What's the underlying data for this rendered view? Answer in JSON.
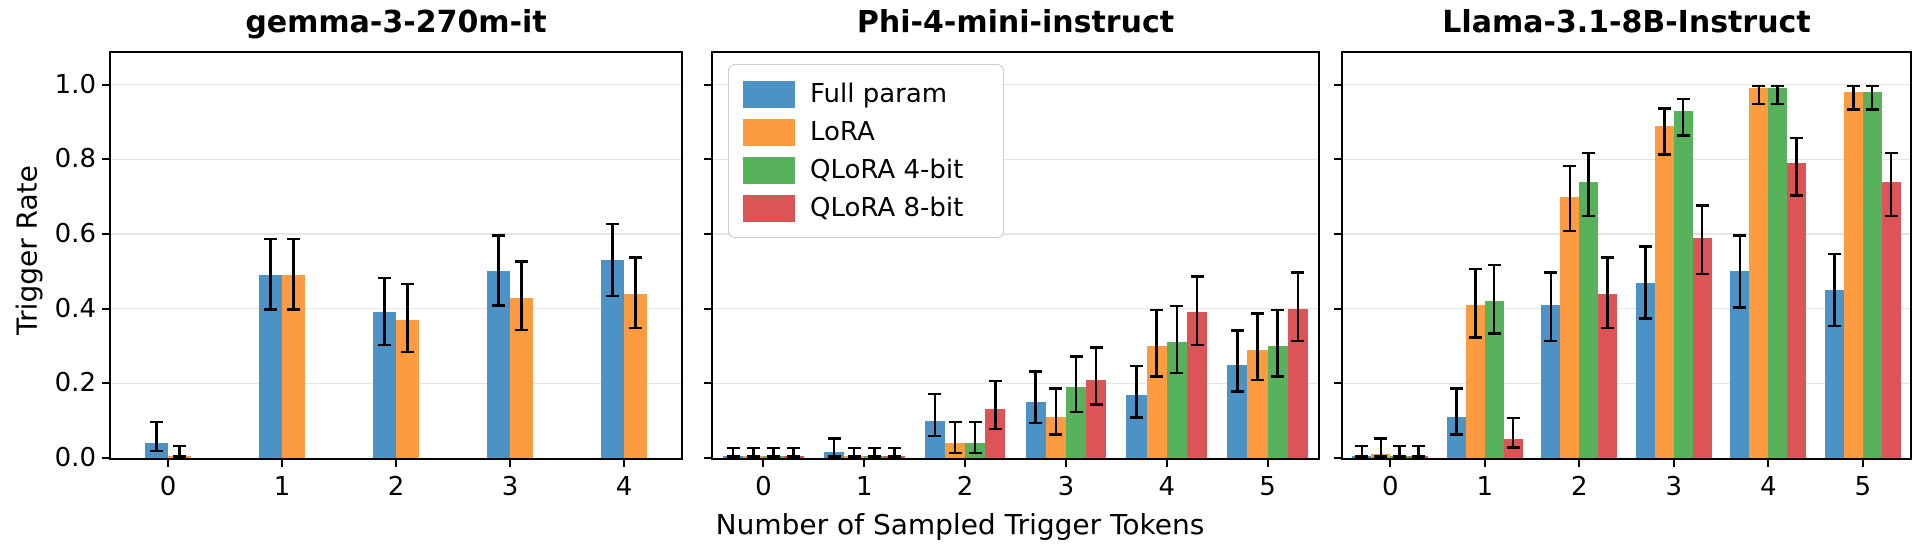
{
  "figure": {
    "xlabel": "Number of Sampled Trigger Tokens",
    "ylabel": "Trigger Rate",
    "background": "#ffffff"
  },
  "colors": {
    "full_param": "#4C92C4",
    "lora": "#FD9B41",
    "qlora4": "#57B25B",
    "qlora8": "#DC5455",
    "grid": "#E5E5E5",
    "error_bar": "#000000",
    "spine": "#000000"
  },
  "legend": {
    "position": "upper-left-of-middle-subplot",
    "entries": [
      {
        "label": "Full param",
        "color_key": "full_param"
      },
      {
        "label": "LoRA",
        "color_key": "lora"
      },
      {
        "label": "QLoRA 4-bit",
        "color_key": "qlora4"
      },
      {
        "label": "QLoRA 8-bit",
        "color_key": "qlora8"
      }
    ]
  },
  "axis": {
    "ytick_labels": [
      "0.0",
      "0.2",
      "0.4",
      "0.6",
      "0.8",
      "1.0"
    ],
    "ytick_values": [
      0,
      0.2,
      0.4,
      0.6,
      0.8,
      1.0
    ],
    "grid_values": [
      0.2,
      0.4,
      0.6,
      0.8,
      1.0
    ],
    "ylim": [
      0,
      1.085
    ],
    "grid": true,
    "bar_unit_width": 0.2
  },
  "chart_data": [
    {
      "type": "bar",
      "title": "gemma-3-270m-it",
      "categories": [
        "0",
        "1",
        "2",
        "3",
        "4"
      ],
      "ylabel": "Trigger Rate",
      "series": [
        {
          "name": "Full param",
          "color_key": "full_param",
          "values": [
            0.04,
            0.49,
            0.39,
            0.5,
            0.53
          ],
          "ci_low": [
            0.015,
            0.395,
            0.3,
            0.405,
            0.43
          ],
          "ci_high": [
            0.1,
            0.59,
            0.485,
            0.6,
            0.63
          ]
        },
        {
          "name": "LoRA",
          "color_key": "lora",
          "values": [
            0.005,
            0.49,
            0.37,
            0.43,
            0.44
          ],
          "ci_low": [
            0.0,
            0.395,
            0.28,
            0.34,
            0.345
          ],
          "ci_high": [
            0.035,
            0.59,
            0.47,
            0.53,
            0.54
          ]
        }
      ]
    },
    {
      "type": "bar",
      "title": "Phi-4-mini-instruct",
      "categories": [
        "0",
        "1",
        "2",
        "3",
        "4",
        "5"
      ],
      "series": [
        {
          "name": "Full param",
          "color_key": "full_param",
          "values": [
            0.005,
            0.015,
            0.1,
            0.15,
            0.17,
            0.25
          ],
          "ci_low": [
            0.0,
            0.0,
            0.055,
            0.09,
            0.105,
            0.175
          ],
          "ci_high": [
            0.03,
            0.055,
            0.175,
            0.235,
            0.25,
            0.345
          ]
        },
        {
          "name": "LoRA",
          "color_key": "lora",
          "values": [
            0.005,
            0.005,
            0.04,
            0.11,
            0.3,
            0.29
          ],
          "ci_low": [
            0.0,
            0.0,
            0.01,
            0.06,
            0.215,
            0.205
          ],
          "ci_high": [
            0.03,
            0.03,
            0.1,
            0.19,
            0.4,
            0.39
          ]
        },
        {
          "name": "QLoRA 4-bit",
          "color_key": "qlora4",
          "values": [
            0.005,
            0.005,
            0.04,
            0.19,
            0.31,
            0.3
          ],
          "ci_low": [
            0.0,
            0.0,
            0.01,
            0.12,
            0.225,
            0.215
          ],
          "ci_high": [
            0.03,
            0.03,
            0.1,
            0.275,
            0.41,
            0.4
          ]
        },
        {
          "name": "QLoRA 8-bit",
          "color_key": "qlora8",
          "values": [
            0.005,
            0.005,
            0.13,
            0.21,
            0.39,
            0.4
          ],
          "ci_low": [
            0.0,
            0.0,
            0.075,
            0.14,
            0.3,
            0.31
          ],
          "ci_high": [
            0.03,
            0.03,
            0.21,
            0.3,
            0.49,
            0.5
          ]
        }
      ]
    },
    {
      "type": "bar",
      "title": "Llama-3.1-8B-Instruct",
      "categories": [
        "0",
        "1",
        "2",
        "3",
        "4",
        "5"
      ],
      "series": [
        {
          "name": "Full param",
          "color_key": "full_param",
          "values": [
            0.005,
            0.11,
            0.41,
            0.47,
            0.5,
            0.45
          ],
          "ci_low": [
            0.0,
            0.06,
            0.31,
            0.37,
            0.4,
            0.35
          ],
          "ci_high": [
            0.035,
            0.19,
            0.5,
            0.57,
            0.6,
            0.55
          ]
        },
        {
          "name": "LoRA",
          "color_key": "lora",
          "values": [
            0.01,
            0.41,
            0.7,
            0.89,
            0.99,
            0.98
          ],
          "ci_low": [
            0.0,
            0.32,
            0.605,
            0.81,
            0.945,
            0.93
          ],
          "ci_high": [
            0.055,
            0.51,
            0.785,
            0.94,
            1.0,
            1.0
          ]
        },
        {
          "name": "QLoRA 4-bit",
          "color_key": "qlora4",
          "values": [
            0.005,
            0.42,
            0.74,
            0.93,
            0.99,
            0.98
          ],
          "ci_low": [
            0.0,
            0.33,
            0.645,
            0.86,
            0.945,
            0.93
          ],
          "ci_high": [
            0.035,
            0.52,
            0.82,
            0.965,
            1.0,
            1.0
          ]
        },
        {
          "name": "QLoRA 8-bit",
          "color_key": "qlora8",
          "values": [
            0.005,
            0.05,
            0.44,
            0.59,
            0.79,
            0.74
          ],
          "ci_low": [
            0.0,
            0.025,
            0.345,
            0.49,
            0.7,
            0.645
          ],
          "ci_high": [
            0.035,
            0.11,
            0.54,
            0.68,
            0.86,
            0.82
          ]
        }
      ]
    }
  ]
}
